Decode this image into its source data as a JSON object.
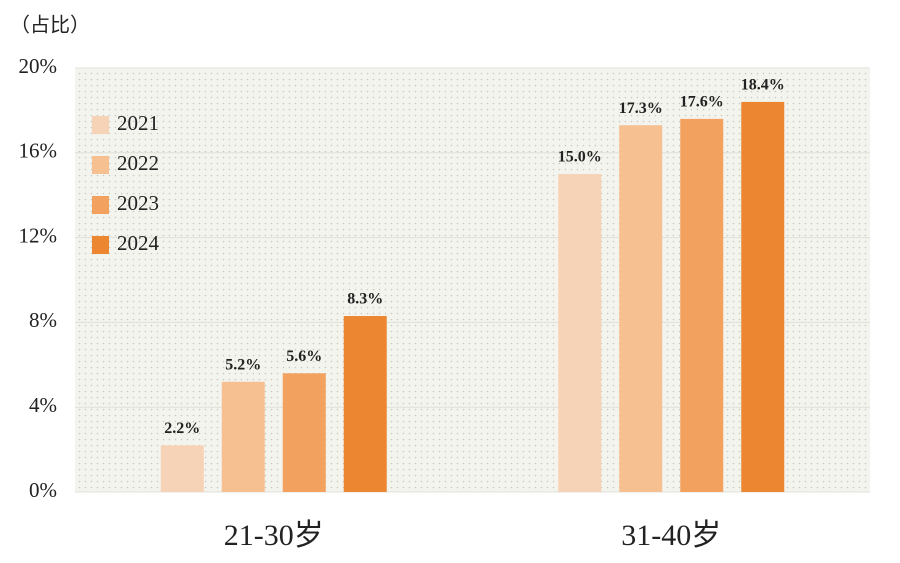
{
  "chart_data": {
    "type": "bar",
    "y_label": "（占比）",
    "categories": [
      "21-30岁",
      "31-40岁"
    ],
    "series": [
      {
        "name": "2021",
        "color": "#f6d2b6",
        "values": [
          2.2,
          15.0
        ],
        "value_labels": [
          "2.2%",
          "15.0%"
        ]
      },
      {
        "name": "2022",
        "color": "#f7c090",
        "values": [
          5.2,
          17.3
        ],
        "value_labels": [
          "5.2%",
          "17.3%"
        ]
      },
      {
        "name": "2023",
        "color": "#f2a25e",
        "values": [
          5.6,
          17.6
        ],
        "value_labels": [
          "5.6%",
          "17.6%"
        ]
      },
      {
        "name": "2024",
        "color": "#ec8630",
        "values": [
          8.3,
          18.4
        ],
        "value_labels": [
          "8.3%",
          "18.4%"
        ]
      }
    ],
    "ylim": [
      0,
      20
    ],
    "yticks": [
      {
        "value": 0,
        "label": "0%"
      },
      {
        "value": 4,
        "label": "4%"
      },
      {
        "value": 8,
        "label": "8%"
      },
      {
        "value": 12,
        "label": "12%"
      },
      {
        "value": 16,
        "label": "16%"
      },
      {
        "value": 20,
        "label": "20%"
      }
    ],
    "grid": true,
    "legend": "upper left"
  }
}
